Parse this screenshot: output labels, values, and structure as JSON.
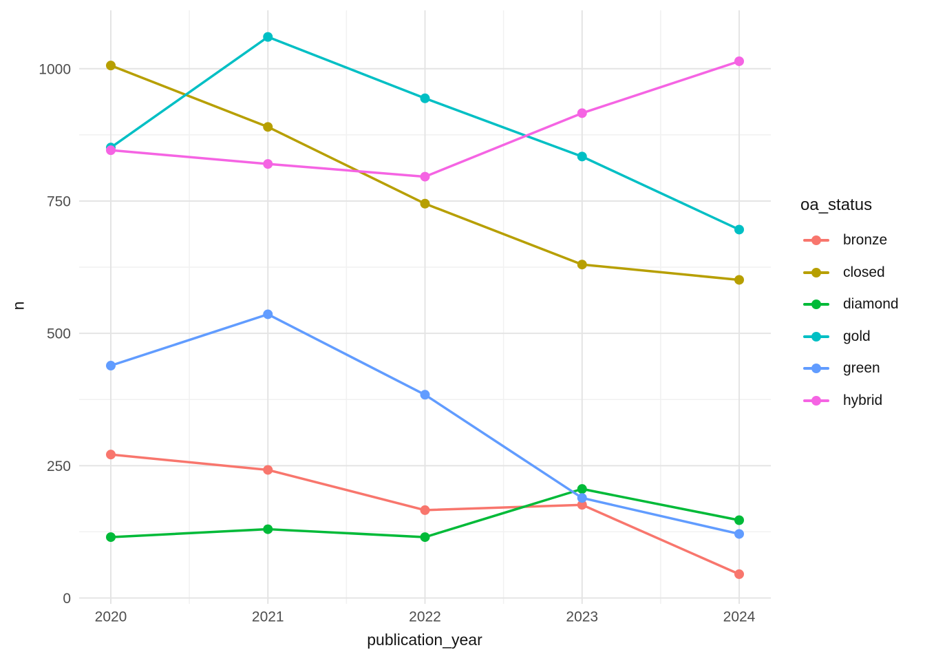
{
  "chart_data": {
    "type": "line",
    "x": [
      2020,
      2021,
      2022,
      2023,
      2024
    ],
    "x_tick_labels": [
      "2020",
      "2021",
      "2022",
      "2023",
      "2024"
    ],
    "y_ticks": [
      0,
      250,
      500,
      750,
      1000
    ],
    "y_tick_labels": [
      "0",
      "250",
      "500",
      "750",
      "1000"
    ],
    "xlabel": "publication_year",
    "ylabel": "n",
    "xlim": [
      2019.8,
      2024.2
    ],
    "ylim": [
      -11,
      1110
    ],
    "grid": {
      "major": true,
      "minor": true
    },
    "legend": {
      "title": "oa_status",
      "position": "right",
      "entries": [
        "bronze",
        "closed",
        "diamond",
        "gold",
        "green",
        "hybrid"
      ]
    },
    "series": [
      {
        "name": "bronze",
        "color": "#F8766D",
        "values": [
          271,
          242,
          166,
          176,
          45
        ]
      },
      {
        "name": "closed",
        "color": "#B79F00",
        "values": [
          1006,
          890,
          745,
          630,
          601
        ]
      },
      {
        "name": "diamond",
        "color": "#00BA38",
        "values": [
          115,
          130,
          115,
          206,
          147
        ]
      },
      {
        "name": "gold",
        "color": "#00BFC4",
        "values": [
          851,
          1060,
          944,
          834,
          696
        ]
      },
      {
        "name": "green",
        "color": "#619CFF",
        "values": [
          439,
          536,
          384,
          189,
          121
        ]
      },
      {
        "name": "hybrid",
        "color": "#F564E3",
        "values": [
          846,
          820,
          796,
          916,
          1014
        ]
      }
    ]
  },
  "colors": {
    "grid_major": "#E4E4E4",
    "grid_minor": "#F1F1F1",
    "tick_label": "#4D4D4D",
    "axis_title": "#141414",
    "background": "#FFFFFF"
  }
}
